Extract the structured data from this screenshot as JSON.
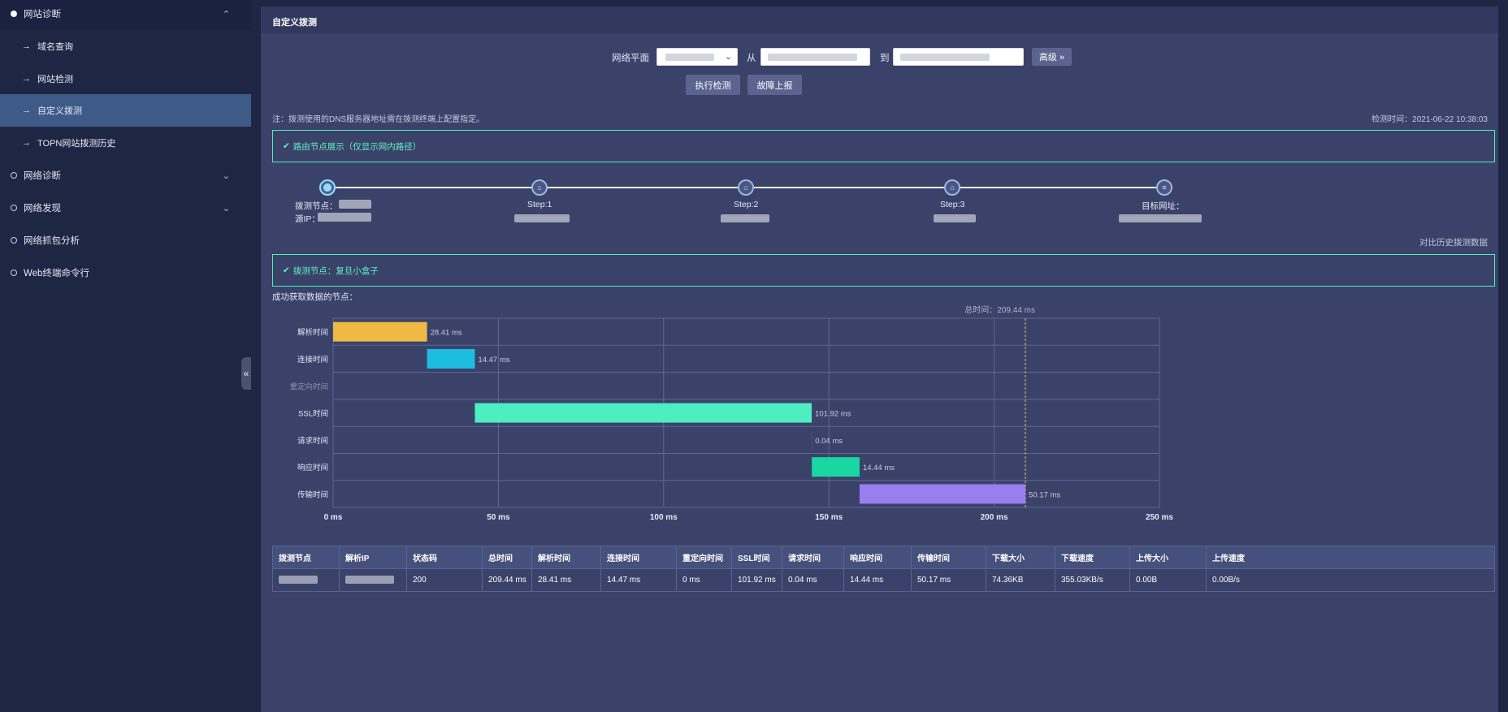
{
  "sidebar": {
    "items": [
      {
        "label": "网站诊断",
        "expanded": true
      },
      {
        "label": "网络诊断"
      },
      {
        "label": "网络发现"
      },
      {
        "label": "网络抓包分析"
      },
      {
        "label": "Web终端命令行"
      }
    ],
    "sub_items": [
      {
        "label": "域名查询"
      },
      {
        "label": "网站检测"
      },
      {
        "label": "自定义拨测",
        "active": true
      },
      {
        "label": "TOPN网站拨测历史"
      }
    ],
    "collapse_icon": "«"
  },
  "panel": {
    "title": "自定义拨测",
    "form": {
      "plane_label": "网络平面",
      "from_label": "从",
      "to_label": "到",
      "advanced_label": "高级 »"
    },
    "buttons": {
      "execute": "执行检测",
      "report": "故障上报"
    },
    "note": "注：拨测使用的DNS服务器地址需在拨测终端上配置指定。",
    "check_time": "检测时间：2021-06-22 10:38:03",
    "route_box": "路由节点展示（仅显示网内路径）",
    "route": {
      "nodes": [
        {
          "label": "拨测节点：",
          "sub": "源IP："
        },
        {
          "label": "Step:1"
        },
        {
          "label": "Step:2"
        },
        {
          "label": "Step:3"
        },
        {
          "label": "目标网址："
        }
      ]
    },
    "compare_link": "对比历史拨测数据",
    "probe_box": "拨测节点：复旦小盒子",
    "success_label": "成功获取数据的节点：",
    "colors": {
      "accent_green": "#4ff0b8",
      "active_nav": "#3e5a87"
    }
  },
  "chart_data": {
    "type": "bar",
    "subtype": "waterfall",
    "total_label": "总时间：209.44 ms",
    "total": 209.44,
    "categories": [
      "解析时间",
      "连接时间",
      "重定向时间",
      "SSL时间",
      "请求时间",
      "响应时间",
      "传输时间"
    ],
    "starts": [
      0,
      28.41,
      42.88,
      42.88,
      144.8,
      144.84,
      159.28
    ],
    "values": [
      28.41,
      14.47,
      0,
      101.92,
      0.04,
      14.44,
      50.17
    ],
    "value_labels": [
      "28.41 ms",
      "14.47 ms",
      "",
      "101.92 ms",
      "0.04 ms",
      "14.44 ms",
      "50.17 ms"
    ],
    "colors": [
      "#efb944",
      "#1dbde2",
      "#888fae",
      "#4deebf",
      "#888fae",
      "#1ad6a0",
      "#9a7ef0"
    ],
    "xlim": [
      0,
      250
    ],
    "xticks": [
      "0 ms",
      "50 ms",
      "100 ms",
      "150 ms",
      "200 ms",
      "250 ms"
    ],
    "grid": true
  },
  "table": {
    "headers": [
      "拨测节点",
      "解析IP",
      "状态码",
      "总时间",
      "解析时间",
      "连接时间",
      "重定向时间",
      "SSL时间",
      "请求时间",
      "响应时间",
      "传输时间",
      "下载大小",
      "下载速度",
      "上传大小",
      "上传速度"
    ],
    "row": [
      "",
      "",
      "200",
      "209.44 ms",
      "28.41 ms",
      "14.47 ms",
      "0 ms",
      "101.92 ms",
      "0.04 ms",
      "14.44 ms",
      "50.17 ms",
      "74.36KB",
      "355.03KB/s",
      "0.00B",
      "0.00B/s"
    ]
  }
}
